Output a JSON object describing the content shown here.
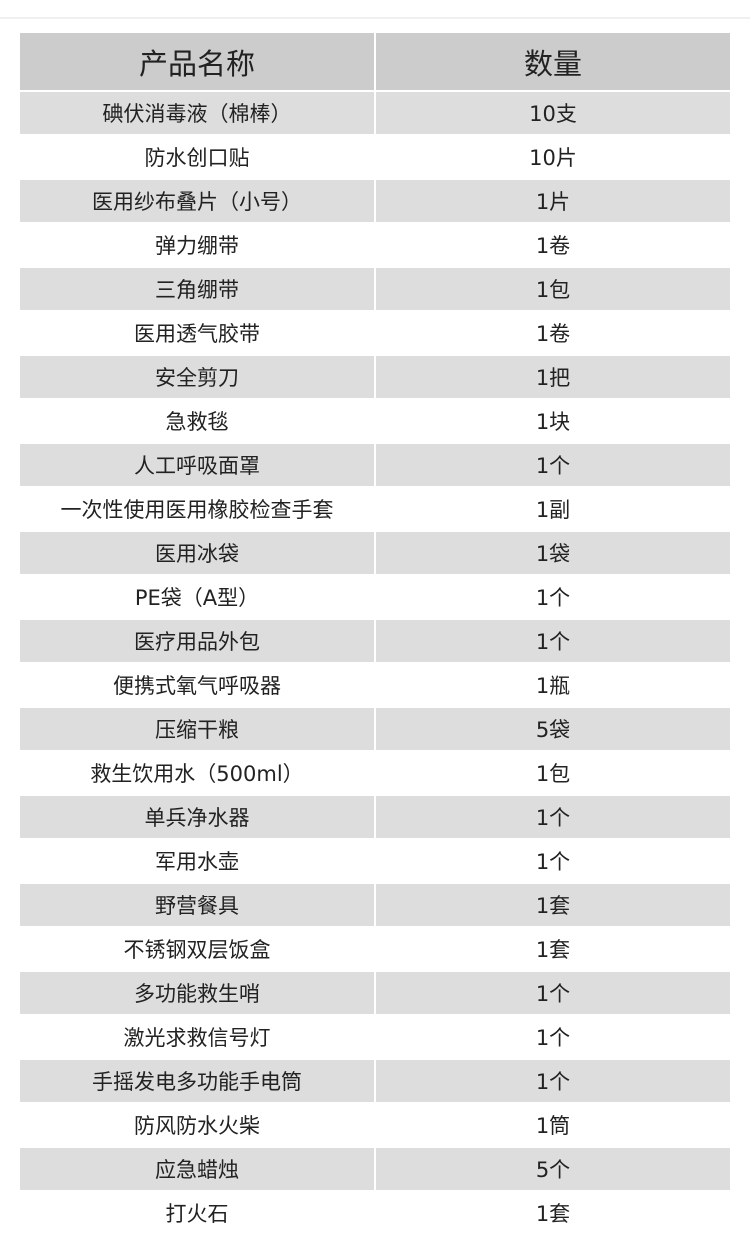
{
  "table": {
    "headers": [
      "产品名称",
      "数量"
    ],
    "rows": [
      [
        "碘伏消毒液（棉棒）",
        "10支"
      ],
      [
        "防水创口贴",
        "10片"
      ],
      [
        "医用纱布叠片（小号）",
        "1片"
      ],
      [
        "弹力绷带",
        "1卷"
      ],
      [
        "三角绷带",
        "1包"
      ],
      [
        "医用透气胶带",
        "1卷"
      ],
      [
        "安全剪刀",
        "1把"
      ],
      [
        "急救毯",
        "1块"
      ],
      [
        "人工呼吸面罩",
        "1个"
      ],
      [
        "一次性使用医用橡胶检查手套",
        "1副"
      ],
      [
        "医用冰袋",
        "1袋"
      ],
      [
        "PE袋（A型）",
        "1个"
      ],
      [
        "医疗用品外包",
        "1个"
      ],
      [
        "便携式氧气呼吸器",
        "1瓶"
      ],
      [
        "压缩干粮",
        "5袋"
      ],
      [
        "救生饮用水（500ml）",
        "1包"
      ],
      [
        "单兵净水器",
        "1个"
      ],
      [
        "军用水壶",
        "1个"
      ],
      [
        "野营餐具",
        "1套"
      ],
      [
        "不锈钢双层饭盒",
        "1套"
      ],
      [
        "多功能救生哨",
        "1个"
      ],
      [
        "激光求救信号灯",
        "1个"
      ],
      [
        "手摇发电多功能手电筒",
        "1个"
      ],
      [
        "防风防水火柴",
        "1筒"
      ],
      [
        "应急蜡烛",
        "5个"
      ],
      [
        "打火石",
        "1套"
      ]
    ]
  }
}
